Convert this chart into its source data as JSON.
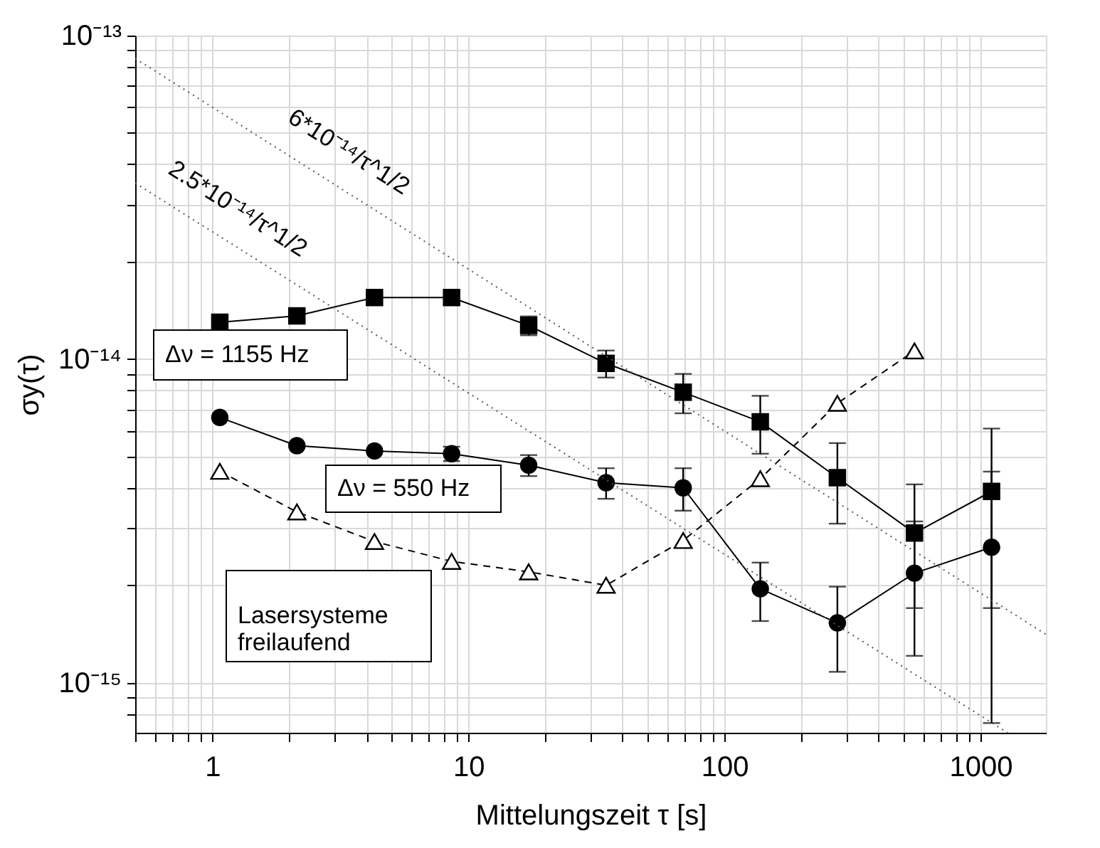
{
  "chart_data": {
    "type": "line",
    "xlabel": "Mittelungszeit τ  [s]",
    "ylabel": "σy(τ)",
    "log": "xy",
    "grid": true,
    "xlim": [
      0.5,
      1800
    ],
    "ylim": [
      7e-16,
      1e-13
    ],
    "xticks": [
      {
        "value": 0.5,
        "label": null
      },
      {
        "value": 0.6,
        "label": null
      },
      {
        "value": 0.7,
        "label": null
      },
      {
        "value": 0.8,
        "label": null
      },
      {
        "value": 0.9,
        "label": null
      },
      1,
      {
        "value": 2,
        "label": null
      },
      {
        "value": 3,
        "label": null
      },
      {
        "value": 4,
        "label": null
      },
      {
        "value": 5,
        "label": null
      },
      {
        "value": 6,
        "label": null
      },
      {
        "value": 7,
        "label": null
      },
      {
        "value": 8,
        "label": null
      },
      {
        "value": 9,
        "label": null
      },
      10,
      {
        "value": 20,
        "label": null
      },
      {
        "value": 30,
        "label": null
      },
      {
        "value": 40,
        "label": null
      },
      {
        "value": 50,
        "label": null
      },
      {
        "value": 60,
        "label": null
      },
      {
        "value": 70,
        "label": null
      },
      {
        "value": 80,
        "label": null
      },
      {
        "value": 90,
        "label": null
      },
      100,
      {
        "value": 200,
        "label": null
      },
      {
        "value": 300,
        "label": null
      },
      {
        "value": 400,
        "label": null
      },
      {
        "value": 500,
        "label": null
      },
      {
        "value": 600,
        "label": null
      },
      {
        "value": 700,
        "label": null
      },
      {
        "value": 800,
        "label": null
      },
      {
        "value": 900,
        "label": null
      },
      1000
    ],
    "yticks": [
      {
        "value": 8e-16,
        "label": null
      },
      {
        "value": 9e-16,
        "label": null
      },
      {
        "value": 1e-15,
        "label": "10⁻¹⁵"
      },
      {
        "value": 2e-15,
        "label": null
      },
      {
        "value": 3e-15,
        "label": null
      },
      {
        "value": 4e-15,
        "label": null
      },
      {
        "value": 5e-15,
        "label": null
      },
      {
        "value": 6e-15,
        "label": null
      },
      {
        "value": 7e-15,
        "label": null
      },
      {
        "value": 8e-15,
        "label": null
      },
      {
        "value": 9e-15,
        "label": null
      },
      {
        "value": 1e-14,
        "label": "10⁻¹⁴"
      },
      {
        "value": 2e-14,
        "label": null
      },
      {
        "value": 3e-14,
        "label": null
      },
      {
        "value": 4e-14,
        "label": null
      },
      {
        "value": 5e-14,
        "label": null
      },
      {
        "value": 6e-14,
        "label": null
      },
      {
        "value": 7e-14,
        "label": null
      },
      {
        "value": 8e-14,
        "label": null
      },
      {
        "value": 9e-14,
        "label": null
      },
      {
        "value": 1e-13,
        "label": "10⁻¹³"
      }
    ],
    "x": [
      1.07,
      2.14,
      4.3,
      8.6,
      17.2,
      34.5,
      69,
      138,
      276,
      552,
      1104
    ],
    "series": [
      {
        "color": "#000000",
        "marker": "square",
        "line_style": "solid",
        "values": [
          1.3e-14,
          1.36e-14,
          1.55e-14,
          1.55e-14,
          1.27e-14,
          9.7e-15,
          7.9e-15,
          6.4e-15,
          4.3e-15,
          2.9e-15,
          3.9e-15
        ],
        "errors": [
          null,
          null,
          null,
          null,
          8.5e-16,
          9.3e-16,
          1.1e-15,
          1.3e-15,
          1.2e-15,
          1.2e-15,
          2.2e-15
        ]
      },
      {
        "color": "#000000",
        "marker": "circle",
        "line_style": "solid",
        "values": [
          6.6e-15,
          5.4e-15,
          5.2e-15,
          5.1e-15,
          4.7e-15,
          4.15e-15,
          4e-15,
          1.95e-15,
          1.53e-15,
          2.18e-15,
          2.62e-15
        ],
        "errors": [
          null,
          null,
          null,
          2.6e-16,
          3.5e-16,
          4.5e-16,
          6e-16,
          4e-16,
          4.5e-16,
          9.7e-16,
          1.87e-15
        ]
      },
      {
        "color": "#000000",
        "marker": "triangle",
        "line_style": "dashed",
        "x": [
          1.07,
          2.14,
          4.3,
          8.6,
          17.2,
          34.5,
          69,
          138,
          276,
          552
        ],
        "values": [
          4.5e-15,
          3.37e-15,
          2.73e-15,
          2.37e-15,
          2.2e-15,
          2e-15,
          2.75e-15,
          4.27e-15,
          7.3e-15,
          1.06e-14
        ]
      },
      {
        "color": "#555555",
        "marker": "none",
        "line_style": "dotted",
        "x": [
          0.5,
          1800
        ],
        "values": [
          8.5e-14,
          1.41e-15
        ]
      },
      {
        "color": "#555555",
        "marker": "none",
        "line_style": "dotted",
        "x": [
          0.5,
          1276
        ],
        "values": [
          3.5e-14,
          7e-16
        ]
      }
    ],
    "annotations": [
      "6*10⁻¹⁴/τ^1/2",
      "2.5*10⁻¹⁴/τ^1/2",
      "Δν = 1155 Hz",
      "Δν = 550 Hz",
      "Lasersysteme\nfreilaufend"
    ]
  }
}
